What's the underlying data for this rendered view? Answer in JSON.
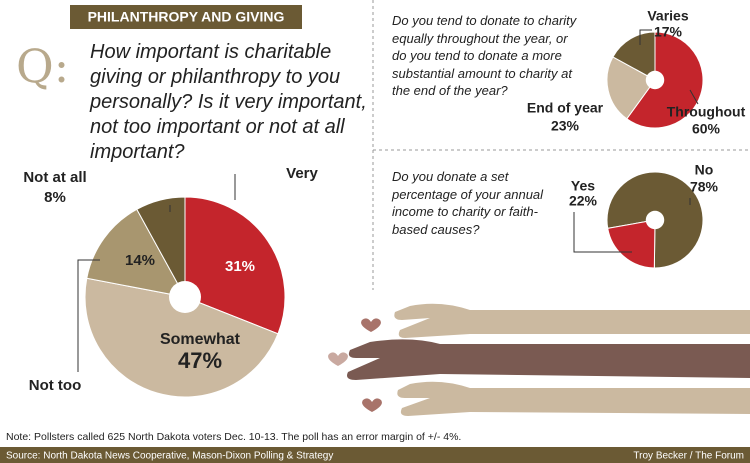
{
  "header": "PHILANTHROPY AND GIVING",
  "question_mark": "Q:",
  "chart_data": [
    {
      "type": "pie",
      "title": "How important is charitable giving or philanthropy to you personally? Is it very important, not too important or not at all important?",
      "categories": [
        "Very",
        "Somewhat",
        "Not too",
        "Not at all"
      ],
      "values": [
        31,
        47,
        14,
        8
      ],
      "value_labels": [
        "31%",
        "47%",
        "14%",
        "8%"
      ],
      "colors": [
        "#c4252c",
        "#cbb9a0",
        "#a8966f",
        "#6b5a34"
      ]
    },
    {
      "type": "pie",
      "title": "Do you tend to donate to charity equally throughout the year, or do you tend to donate a more substantial amount to charity at the end of the year?",
      "categories": [
        "Throughout",
        "End of year",
        "Varies"
      ],
      "values": [
        60,
        23,
        17
      ],
      "value_labels": [
        "60%",
        "23%",
        "17%"
      ],
      "colors": [
        "#c4252c",
        "#cbb9a0",
        "#6b5a34"
      ]
    },
    {
      "type": "pie",
      "title": "Do you donate a set percentage of your annual income to charity or faith-based causes?",
      "categories": [
        "No",
        "Yes"
      ],
      "values": [
        78,
        22
      ],
      "value_labels": [
        "78%",
        "22%"
      ],
      "colors": [
        "#6b5a34",
        "#c4252c"
      ]
    }
  ],
  "note": "Note: Pollsters called 625 North Dakota voters Dec. 10-13. The poll has an error margin of +/- 4%.",
  "source": "Source: North Dakota News Cooperative, Mason-Dixon Polling & Strategy",
  "credit": "Troy Becker / The Forum"
}
